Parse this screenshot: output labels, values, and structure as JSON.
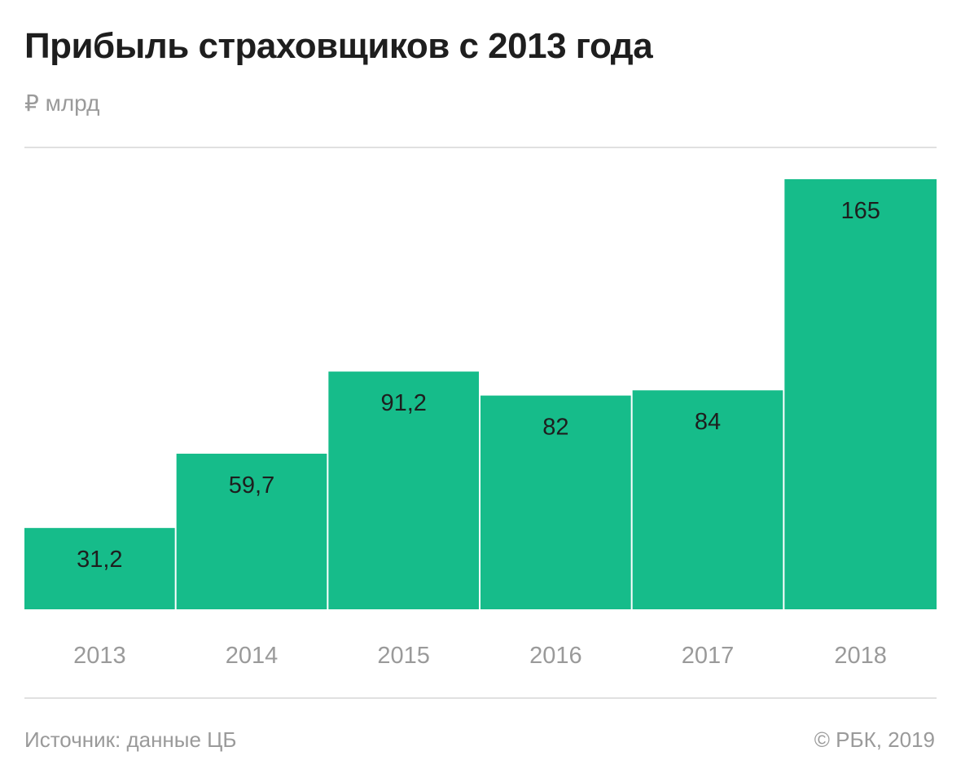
{
  "title": "Прибыль страховщиков с 2013 года",
  "subtitle": "₽ млрд",
  "chart_data": {
    "type": "bar",
    "title": "Прибыль страховщиков с 2013 года",
    "ylabel": "₽ млрд",
    "xlabel": "",
    "categories": [
      "2013",
      "2014",
      "2015",
      "2016",
      "2017",
      "2018"
    ],
    "values": [
      31.2,
      59.7,
      91.2,
      82,
      84,
      165
    ],
    "value_labels": [
      "31,2",
      "59,7",
      "91,2",
      "82",
      "84",
      "165"
    ],
    "ylim": [
      0,
      165
    ],
    "grid": false,
    "legend": "none",
    "bar_color": "#16bc8a"
  },
  "footer": {
    "source": "Источник: данные ЦБ",
    "credit": "© РБК, 2019"
  }
}
